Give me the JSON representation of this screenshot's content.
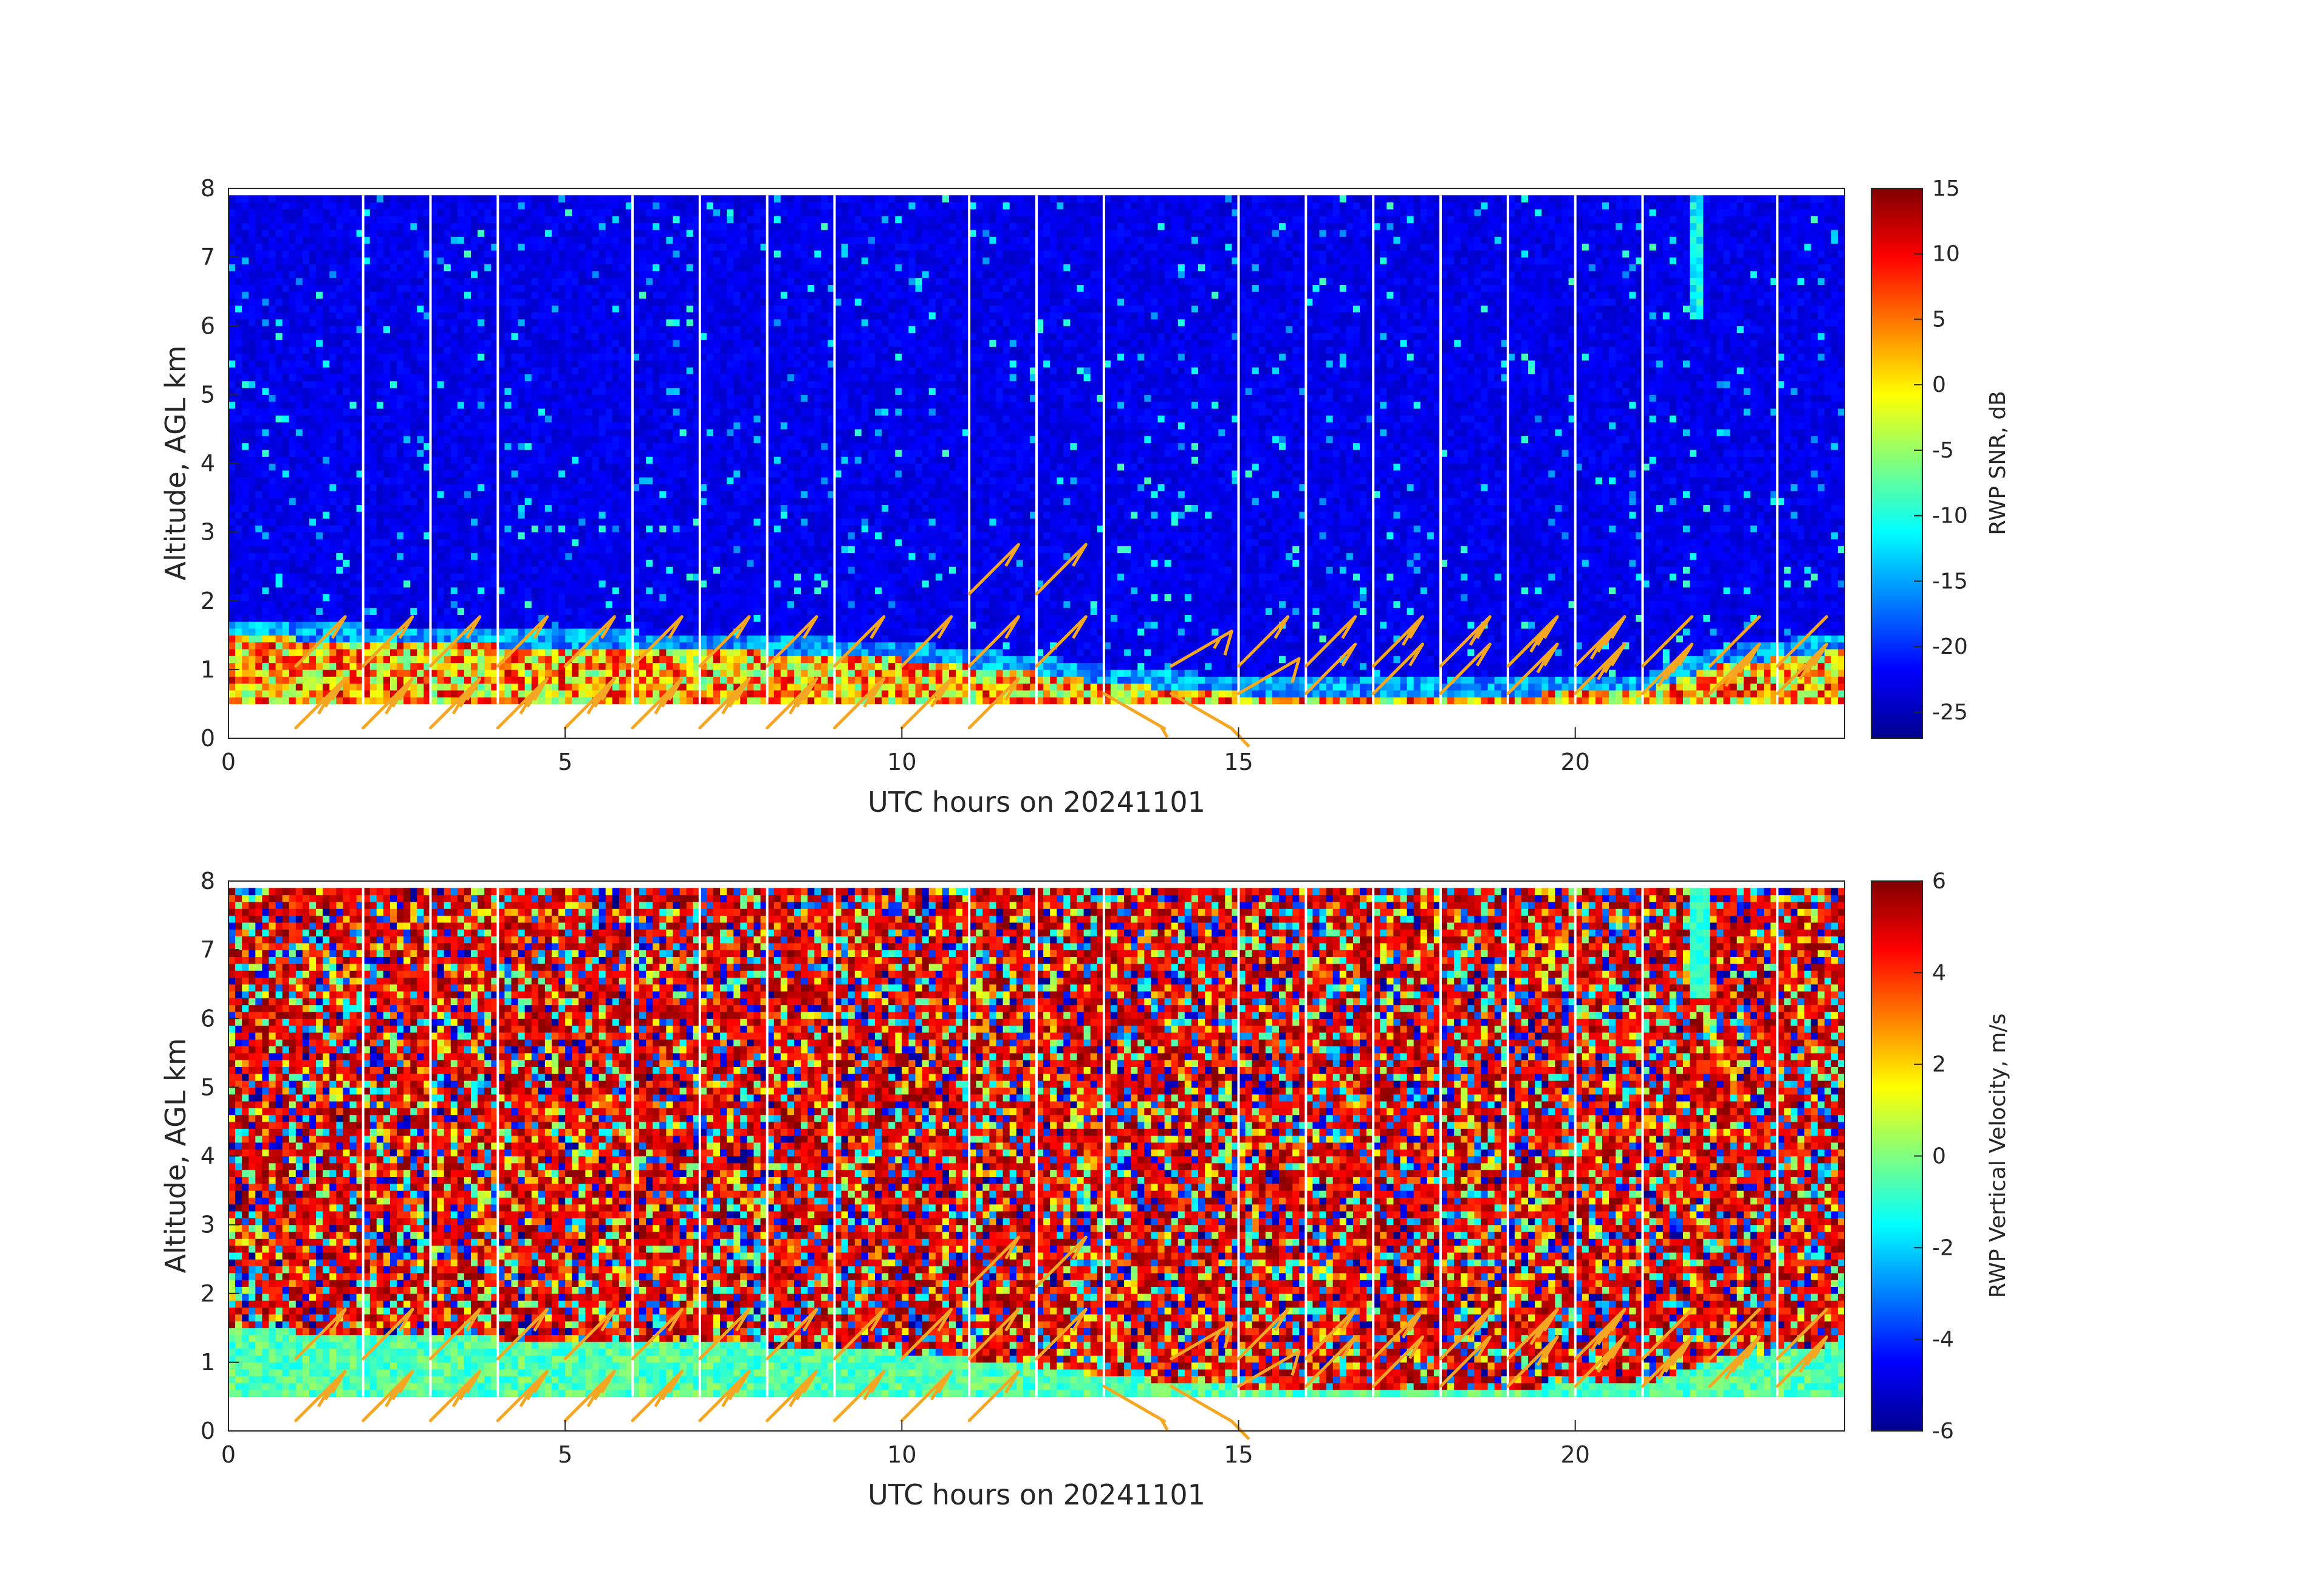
{
  "chart_data": [
    {
      "type": "heatmap",
      "panel": "top",
      "xlabel": "UTC hours on 20241101",
      "ylabel": "Altitude, AGL km",
      "xlim": [
        0,
        24
      ],
      "ylim": [
        0,
        8
      ],
      "xticks": [
        0,
        5,
        10,
        15,
        20
      ],
      "yticks": [
        0,
        1,
        2,
        3,
        4,
        5,
        6,
        7,
        8
      ],
      "colorbar": {
        "label": "RWP SNR, dB",
        "range": [
          -27,
          15
        ],
        "ticks": [
          15,
          10,
          5,
          0,
          -5,
          -10,
          -15,
          -20,
          -25
        ]
      },
      "data_top_km": 7.9,
      "data_bottom_km": 0.5,
      "hourly_gap_times": [
        2,
        3,
        4,
        6,
        7,
        8,
        9,
        11,
        12,
        13,
        15,
        16,
        17,
        18,
        19,
        20,
        21,
        23
      ],
      "boundary_layer": [
        {
          "hour": 0,
          "top_km": 1.45
        },
        {
          "hour": 2,
          "top_km": 1.35
        },
        {
          "hour": 4,
          "top_km": 1.3
        },
        {
          "hour": 6,
          "top_km": 1.25
        },
        {
          "hour": 8,
          "top_km": 1.2
        },
        {
          "hour": 10,
          "top_km": 1.1
        },
        {
          "hour": 12,
          "top_km": 0.9
        },
        {
          "hour": 13,
          "top_km": 0.75
        },
        {
          "hour": 15,
          "top_km": 0.6
        },
        {
          "hour": 18,
          "top_km": 0.55
        },
        {
          "hour": 21,
          "top_km": 0.65
        },
        {
          "hour": 22,
          "top_km": 1.0
        },
        {
          "hour": 24,
          "top_km": 1.25
        }
      ]
    },
    {
      "type": "heatmap",
      "panel": "bottom",
      "xlabel": "UTC hours on 20241101",
      "ylabel": "Altitude, AGL km",
      "xlim": [
        0,
        24
      ],
      "ylim": [
        0,
        8
      ],
      "xticks": [
        0,
        5,
        10,
        15,
        20
      ],
      "yticks": [
        0,
        1,
        2,
        3,
        4,
        5,
        6,
        7,
        8
      ],
      "colorbar": {
        "label": "RWP Vertical Velocity, m/s",
        "range": [
          -6,
          6
        ],
        "ticks": [
          6,
          4,
          2,
          0,
          -2,
          -4,
          -6
        ]
      },
      "data_top_km": 7.9,
      "data_bottom_km": 0.5,
      "hourly_gap_times": [
        2,
        3,
        4,
        6,
        7,
        8,
        9,
        11,
        12,
        13,
        15,
        16,
        17,
        18,
        19,
        20,
        21,
        23
      ],
      "boundary_layer": [
        {
          "hour": 0,
          "top_km": 1.45
        },
        {
          "hour": 2,
          "top_km": 1.35
        },
        {
          "hour": 4,
          "top_km": 1.3
        },
        {
          "hour": 6,
          "top_km": 1.25
        },
        {
          "hour": 8,
          "top_km": 1.2
        },
        {
          "hour": 10,
          "top_km": 1.1
        },
        {
          "hour": 12,
          "top_km": 0.9
        },
        {
          "hour": 13,
          "top_km": 0.75
        },
        {
          "hour": 15,
          "top_km": 0.6
        },
        {
          "hour": 18,
          "top_km": 0.55
        },
        {
          "hour": 21,
          "top_km": 0.65
        },
        {
          "hour": 22,
          "top_km": 1.0
        },
        {
          "hour": 24,
          "top_km": 1.25
        }
      ]
    }
  ],
  "wind_barbs": {
    "color": "#f5a623",
    "barbs": [
      {
        "t": 1,
        "z": 1.05,
        "dir_deg": 315,
        "kts": 15
      },
      {
        "t": 1,
        "z": 0.15,
        "dir_deg": 315,
        "kts": 30
      },
      {
        "t": 2,
        "z": 1.05,
        "dir_deg": 315,
        "kts": 15
      },
      {
        "t": 2,
        "z": 0.15,
        "dir_deg": 315,
        "kts": 30
      },
      {
        "t": 3,
        "z": 1.05,
        "dir_deg": 315,
        "kts": 15
      },
      {
        "t": 3,
        "z": 0.15,
        "dir_deg": 315,
        "kts": 30
      },
      {
        "t": 4,
        "z": 1.05,
        "dir_deg": 315,
        "kts": 15
      },
      {
        "t": 4,
        "z": 0.15,
        "dir_deg": 315,
        "kts": 30
      },
      {
        "t": 5,
        "z": 1.05,
        "dir_deg": 315,
        "kts": 15
      },
      {
        "t": 5,
        "z": 0.15,
        "dir_deg": 315,
        "kts": 30
      },
      {
        "t": 6,
        "z": 1.05,
        "dir_deg": 315,
        "kts": 15
      },
      {
        "t": 6,
        "z": 0.15,
        "dir_deg": 315,
        "kts": 30
      },
      {
        "t": 7,
        "z": 1.05,
        "dir_deg": 315,
        "kts": 15
      },
      {
        "t": 7,
        "z": 0.15,
        "dir_deg": 315,
        "kts": 30
      },
      {
        "t": 8,
        "z": 1.05,
        "dir_deg": 315,
        "kts": 15
      },
      {
        "t": 8,
        "z": 0.15,
        "dir_deg": 315,
        "kts": 30
      },
      {
        "t": 9,
        "z": 1.05,
        "dir_deg": 315,
        "kts": 15
      },
      {
        "t": 9,
        "z": 0.15,
        "dir_deg": 315,
        "kts": 20
      },
      {
        "t": 10,
        "z": 1.05,
        "dir_deg": 315,
        "kts": 15
      },
      {
        "t": 10,
        "z": 0.15,
        "dir_deg": 315,
        "kts": 20
      },
      {
        "t": 11,
        "z": 1.05,
        "dir_deg": 315,
        "kts": 10
      },
      {
        "t": 11,
        "z": 0.15,
        "dir_deg": 315,
        "kts": 10
      },
      {
        "t": 11,
        "z": 2.1,
        "dir_deg": 315,
        "kts": 10
      },
      {
        "t": 12,
        "z": 1.05,
        "dir_deg": 315,
        "kts": 10
      },
      {
        "t": 12,
        "z": 2.1,
        "dir_deg": 315,
        "kts": 15
      },
      {
        "t": 13,
        "z": 0.65,
        "dir_deg": 240,
        "kts": 5
      },
      {
        "t": 14,
        "z": 0.65,
        "dir_deg": 240,
        "kts": 10
      },
      {
        "t": 14,
        "z": 1.05,
        "dir_deg": 300,
        "kts": 15
      },
      {
        "t": 15,
        "z": 0.65,
        "dir_deg": 300,
        "kts": 10
      },
      {
        "t": 15,
        "z": 1.05,
        "dir_deg": 315,
        "kts": 15
      },
      {
        "t": 16,
        "z": 0.65,
        "dir_deg": 315,
        "kts": 10
      },
      {
        "t": 16,
        "z": 1.05,
        "dir_deg": 315,
        "kts": 15
      },
      {
        "t": 17,
        "z": 0.65,
        "dir_deg": 315,
        "kts": 10
      },
      {
        "t": 17,
        "z": 1.05,
        "dir_deg": 315,
        "kts": 20
      },
      {
        "t": 18,
        "z": 0.65,
        "dir_deg": 315,
        "kts": 10
      },
      {
        "t": 18,
        "z": 1.05,
        "dir_deg": 315,
        "kts": 25
      },
      {
        "t": 19,
        "z": 0.65,
        "dir_deg": 315,
        "kts": 20
      },
      {
        "t": 19,
        "z": 1.05,
        "dir_deg": 315,
        "kts": 35
      },
      {
        "t": 20,
        "z": 0.65,
        "dir_deg": 315,
        "kts": 30
      },
      {
        "t": 20,
        "z": 1.05,
        "dir_deg": 315,
        "kts": 40
      },
      {
        "t": 21,
        "z": 0.65,
        "dir_deg": 315,
        "kts": 40
      },
      {
        "t": 21,
        "z": 1.05,
        "dir_deg": 315,
        "kts": 50
      },
      {
        "t": 22,
        "z": 0.65,
        "dir_deg": 315,
        "kts": 40
      },
      {
        "t": 22,
        "z": 1.05,
        "dir_deg": 315,
        "kts": 55
      },
      {
        "t": 23,
        "z": 0.65,
        "dir_deg": 315,
        "kts": 35
      },
      {
        "t": 23,
        "z": 1.05,
        "dir_deg": 315,
        "kts": 55
      }
    ]
  }
}
